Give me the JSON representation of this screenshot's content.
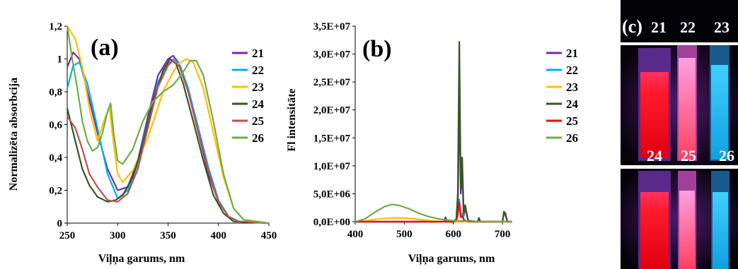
{
  "chart_data": [
    {
      "type": "line",
      "panel_label": "(a)",
      "xlabel": "Viļņa garums, nm",
      "ylabel": "Normalizēta absorbcija",
      "xlim": [
        250,
        450
      ],
      "ylim": [
        0,
        1.2
      ],
      "xticks": [
        "250",
        "300",
        "350",
        "400",
        "450"
      ],
      "yticks": [
        "0",
        "0,2",
        "0,4",
        "0,6",
        "0,8",
        "1",
        "1,2"
      ],
      "legend_position": "right",
      "series": [
        {
          "name": "21",
          "color": "#7030a0",
          "x": [
            250,
            256,
            262,
            270,
            280,
            290,
            300,
            310,
            320,
            330,
            340,
            350,
            355,
            360,
            370,
            380,
            390,
            400,
            410,
            420,
            450
          ],
          "y": [
            0.95,
            1.04,
            1.0,
            0.8,
            0.55,
            0.33,
            0.2,
            0.22,
            0.38,
            0.65,
            0.9,
            1.0,
            1.02,
            0.98,
            0.8,
            0.55,
            0.3,
            0.13,
            0.04,
            0.01,
            0.0
          ]
        },
        {
          "name": "22",
          "color": "#00b0f0",
          "x": [
            250,
            256,
            262,
            270,
            280,
            290,
            300,
            310,
            320,
            330,
            340,
            350,
            356,
            362,
            370,
            380,
            390,
            400,
            410,
            420,
            450
          ],
          "y": [
            0.82,
            0.96,
            0.98,
            0.85,
            0.58,
            0.3,
            0.15,
            0.2,
            0.36,
            0.62,
            0.86,
            0.97,
            1.0,
            0.96,
            0.82,
            0.58,
            0.34,
            0.14,
            0.04,
            0.01,
            0.0
          ]
        },
        {
          "name": "23",
          "color": "#ffc000",
          "x": [
            250,
            258,
            265,
            272,
            280,
            288,
            292,
            296,
            300,
            305,
            315,
            330,
            345,
            355,
            360,
            368,
            375,
            385,
            395,
            405,
            415,
            425,
            450
          ],
          "y": [
            1.2,
            1.12,
            0.95,
            0.7,
            0.5,
            0.65,
            0.7,
            0.48,
            0.3,
            0.25,
            0.32,
            0.52,
            0.8,
            0.92,
            0.97,
            1.0,
            0.98,
            0.82,
            0.55,
            0.28,
            0.09,
            0.02,
            0.0
          ]
        },
        {
          "name": "24",
          "color": "#375623",
          "x": [
            250,
            258,
            265,
            272,
            280,
            290,
            298,
            305,
            315,
            325,
            335,
            345,
            352,
            358,
            365,
            375,
            385,
            395,
            405,
            415,
            450
          ],
          "y": [
            0.7,
            0.5,
            0.33,
            0.23,
            0.16,
            0.13,
            0.14,
            0.17,
            0.28,
            0.48,
            0.74,
            0.93,
            1.0,
            0.97,
            0.85,
            0.62,
            0.38,
            0.17,
            0.06,
            0.01,
            0.0
          ]
        },
        {
          "name": "25",
          "color": "#c0504d",
          "x": [
            250,
            258,
            265,
            272,
            280,
            290,
            300,
            310,
            320,
            330,
            340,
            350,
            355,
            362,
            370,
            380,
            390,
            400,
            410,
            420,
            450
          ],
          "y": [
            0.65,
            0.58,
            0.45,
            0.3,
            0.22,
            0.14,
            0.13,
            0.18,
            0.33,
            0.58,
            0.83,
            0.96,
            0.99,
            0.95,
            0.8,
            0.56,
            0.32,
            0.13,
            0.04,
            0.01,
            0.0
          ]
        },
        {
          "name": "26",
          "color": "#70ad47",
          "x": [
            250,
            255,
            260,
            265,
            270,
            275,
            280,
            285,
            290,
            293,
            296,
            300,
            305,
            315,
            325,
            335,
            345,
            355,
            365,
            372,
            378,
            385,
            395,
            405,
            415,
            425,
            450
          ],
          "y": [
            1.22,
            1.0,
            0.82,
            0.62,
            0.5,
            0.44,
            0.46,
            0.55,
            0.68,
            0.73,
            0.55,
            0.38,
            0.36,
            0.45,
            0.62,
            0.74,
            0.8,
            0.84,
            0.92,
            0.99,
            0.99,
            0.9,
            0.62,
            0.3,
            0.09,
            0.02,
            0.0
          ]
        }
      ]
    },
    {
      "type": "line",
      "panel_label": "(b)",
      "xlabel": "Viļņa garums, nm",
      "ylabel": "Fl intensitāte",
      "xlim": [
        400,
        720
      ],
      "ylim": [
        0,
        35000000
      ],
      "xticks": [
        "400",
        "500",
        "600",
        "700"
      ],
      "yticks": [
        "0,0E+00",
        "5,0E+06",
        "1,0E+07",
        "1,5E+07",
        "2,0E+07",
        "2,5E+07",
        "3,0E+07",
        "3,5E+07"
      ],
      "legend_position": "right",
      "series": [
        {
          "name": "21",
          "color": "#7030a0",
          "x": [
            400,
            580,
            584,
            588,
            600,
            606,
            609,
            612,
            615,
            618,
            621,
            624,
            630,
            650,
            652,
            655,
            700,
            703,
            706,
            710,
            720
          ],
          "y": [
            0,
            0,
            800000,
            0,
            0,
            300000,
            2000000,
            22000000,
            5000000,
            9000000,
            1000000,
            2500000,
            100000,
            0,
            600000,
            0,
            0,
            1500000,
            1200000,
            0,
            0
          ]
        },
        {
          "name": "22",
          "color": "#00b0f0",
          "x": [
            400,
            605,
            609,
            612,
            615,
            618,
            622,
            630,
            720
          ],
          "y": [
            0,
            0,
            1000000,
            4000000,
            1000000,
            1500000,
            300000,
            0,
            0
          ]
        },
        {
          "name": "23",
          "color": "#ffc000",
          "x": [
            400,
            420,
            440,
            460,
            480,
            500,
            520,
            540,
            560,
            580,
            600,
            720
          ],
          "y": [
            0,
            150000,
            400000,
            600000,
            700000,
            650000,
            500000,
            300000,
            120000,
            40000,
            0,
            0
          ]
        },
        {
          "name": "24",
          "color": "#375623",
          "x": [
            400,
            580,
            584,
            588,
            600,
            606,
            609,
            612,
            615,
            618,
            621,
            624,
            630,
            650,
            652,
            655,
            700,
            703,
            706,
            710,
            720
          ],
          "y": [
            0,
            0,
            300000,
            0,
            0,
            500000,
            5000000,
            32200000,
            6000000,
            11500000,
            1500000,
            3000000,
            200000,
            0,
            700000,
            0,
            0,
            1800000,
            1500000,
            0,
            0
          ]
        },
        {
          "name": "25",
          "color": "#ff0000",
          "x": [
            400,
            600,
            606,
            609,
            612,
            615,
            618,
            622,
            630,
            720
          ],
          "y": [
            0,
            0,
            200000,
            1500000,
            3500000,
            800000,
            1000000,
            200000,
            0,
            0
          ]
        },
        {
          "name": "26",
          "color": "#70ad47",
          "x": [
            400,
            420,
            440,
            460,
            475,
            490,
            510,
            530,
            550,
            570,
            590,
            610,
            630,
            660,
            700,
            720
          ],
          "y": [
            0,
            500000,
            1700000,
            2700000,
            3100000,
            2900000,
            2300000,
            1500000,
            900000,
            500000,
            250000,
            150000,
            80000,
            30000,
            0,
            0
          ]
        }
      ]
    }
  ],
  "photo": {
    "panel_label": "(c)",
    "top_labels": [
      "21",
      "22",
      "23"
    ],
    "bottom_labels": [
      "24",
      "25",
      "26"
    ]
  }
}
